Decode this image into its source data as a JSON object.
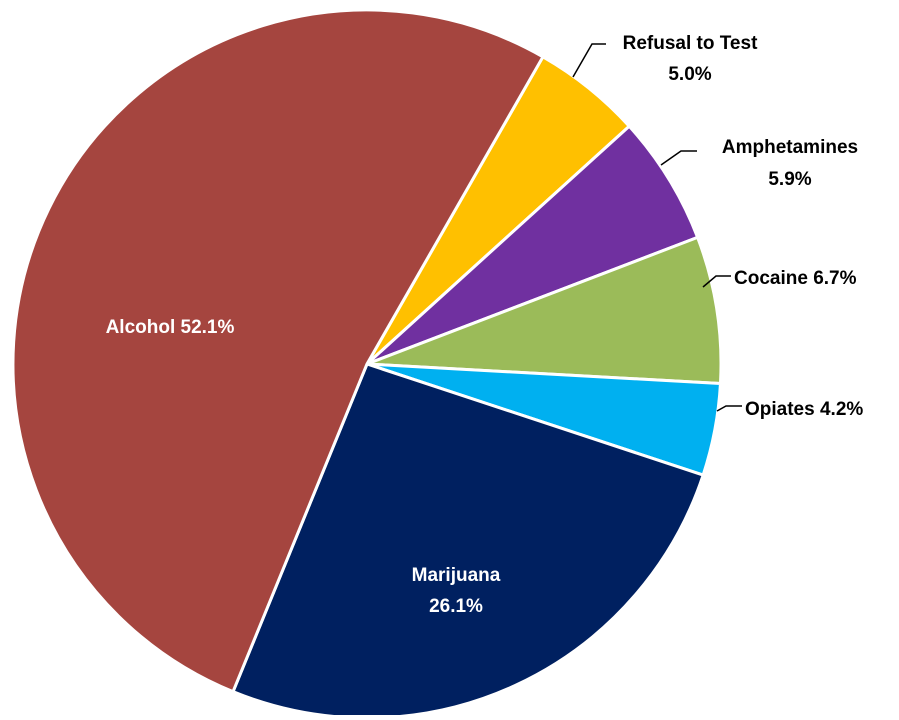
{
  "chart_data": {
    "type": "pie",
    "title": "",
    "start_angle_deg": 29.8,
    "direction": "clockwise",
    "slices": [
      {
        "label": "Refusal to Test",
        "value": 5.0,
        "value_label": "5.0%",
        "color": "#FFC000",
        "label_style": "outside-two-line"
      },
      {
        "label": "Amphetamines",
        "value": 5.9,
        "value_label": "5.9%",
        "color": "#7030A0",
        "label_style": "outside-two-line"
      },
      {
        "label": "Cocaine",
        "value": 6.7,
        "value_label": "6.7%",
        "color": "#9BBB59",
        "label_style": "outside-one-line"
      },
      {
        "label": "Opiates",
        "value": 4.2,
        "value_label": "4.2%",
        "color": "#00B0F0",
        "label_style": "outside-one-line"
      },
      {
        "label": "Marijuana",
        "value": 26.1,
        "value_label": "26.1%",
        "color": "#002060",
        "label_style": "inside-two-line"
      },
      {
        "label": "Alcohol",
        "value": 52.1,
        "value_label": "52.1%",
        "color": "#A5453F",
        "label_style": "inside-one-line"
      }
    ],
    "label_line_color": "#000000",
    "slice_border_color": "#FFFFFF"
  }
}
